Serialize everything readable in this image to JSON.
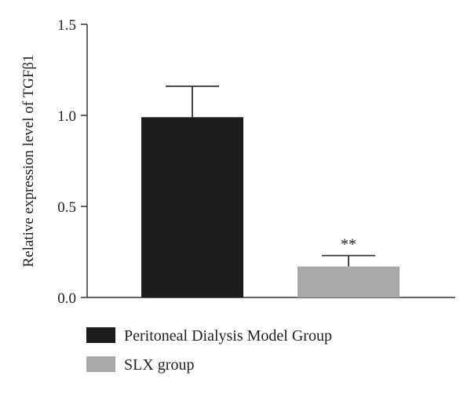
{
  "chart_data": {
    "type": "bar",
    "categories": [
      "Peritoneal Dialysis Model Group",
      "SLX group"
    ],
    "values": [
      0.99,
      0.17
    ],
    "error_upper": [
      1.16,
      0.23
    ],
    "significance": [
      "",
      "**"
    ],
    "ylabel": "Relative expression level of TGFβ1",
    "xlabel": "",
    "ylim": [
      0,
      1.5
    ],
    "yticks": [
      0.0,
      0.5,
      1.0,
      1.5
    ],
    "ytick_labels": [
      "0.0",
      "0.5",
      "1.0",
      "1.5"
    ],
    "grid": false,
    "legend": {
      "placement": "bottom-left",
      "entries": [
        "Peritoneal Dialysis Model Group",
        "SLX group"
      ]
    },
    "colors": [
      "#1c1c1c",
      "#a9a9a9"
    ]
  }
}
